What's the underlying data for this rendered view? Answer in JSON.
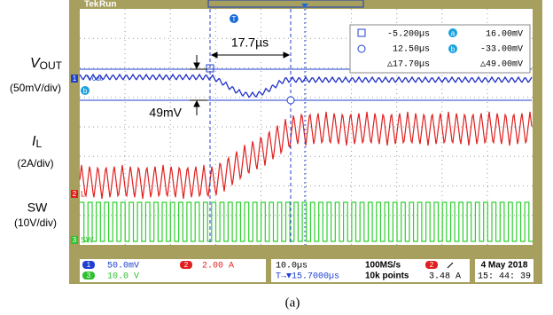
{
  "header": {
    "brand": "Tek",
    "state": "Run"
  },
  "side_labels": [
    {
      "symbol": "V",
      "subscript": "OUT",
      "scale": "(50mV/div)"
    },
    {
      "symbol": "I",
      "subscript": "L",
      "scale": "(2A/div)"
    },
    {
      "symbol": "SW",
      "scale": "(10V/div)"
    }
  ],
  "annotations": {
    "time_delta": "17.7µs",
    "voltage_delta": "49mV"
  },
  "markers": {
    "trigger": "T",
    "ch1": "1",
    "ch1_name": "Vout",
    "cursor_a": "a",
    "cursor_b": "b",
    "ch2": "2",
    "ch2_name": "L",
    "ch3": "3",
    "ch3_name": "SW"
  },
  "readout": {
    "t1": "-5.200µs",
    "v1": "16.00mV",
    "t2": "12.50µs",
    "v2": "-33.00mV",
    "dt": "△17.70µs",
    "dv": "△49.00mV"
  },
  "status": {
    "ch1": "1",
    "ch1_scale": "50.0mV",
    "ch2": "2",
    "ch2_scale": "2.00 A",
    "ch3": "3",
    "ch3_scale": "10.0 V",
    "timebase": "10.0µs",
    "trigger_pos": "T→▼15.7000µs",
    "sample_rate": "100MS/s",
    "record": "10k points",
    "trig_ch": "2",
    "trig_level": "3.48 A",
    "date": "4 May 2018",
    "time": "15: 44: 39"
  },
  "caption": "(a)"
}
